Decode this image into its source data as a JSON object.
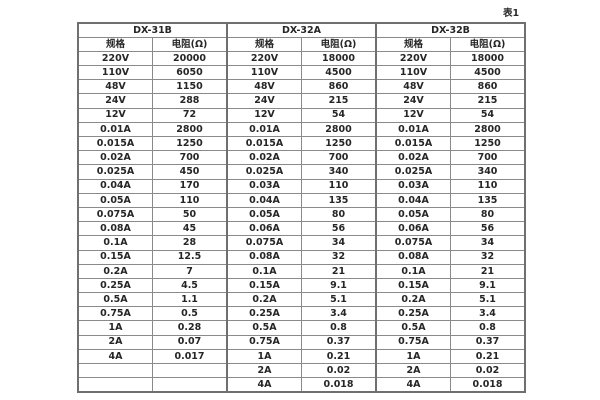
{
  "page": {
    "table_label": "表1"
  },
  "table": {
    "groups": [
      {
        "name": "DX-31B",
        "spec_header": "规格",
        "res_header": "电阻(Ω)",
        "rows": [
          [
            "220V",
            "20000"
          ],
          [
            "110V",
            "6050"
          ],
          [
            "48V",
            "1150"
          ],
          [
            "24V",
            "288"
          ],
          [
            "12V",
            "72"
          ],
          [
            "0.01A",
            "2800"
          ],
          [
            "0.015A",
            "1250"
          ],
          [
            "0.02A",
            "700"
          ],
          [
            "0.025A",
            "450"
          ],
          [
            "0.04A",
            "170"
          ],
          [
            "0.05A",
            "110"
          ],
          [
            "0.075A",
            "50"
          ],
          [
            "0.08A",
            "45"
          ],
          [
            "0.1A",
            "28"
          ],
          [
            "0.15A",
            "12.5"
          ],
          [
            "0.2A",
            "7"
          ],
          [
            "0.25A",
            "4.5"
          ],
          [
            "0.5A",
            "1.1"
          ],
          [
            "0.75A",
            "0.5"
          ],
          [
            "1A",
            "0.28"
          ],
          [
            "2A",
            "0.07"
          ],
          [
            "4A",
            "0.017"
          ],
          [
            "",
            ""
          ],
          [
            "",
            ""
          ]
        ]
      },
      {
        "name": "DX-32A",
        "spec_header": "规格",
        "res_header": "电阻(Ω)",
        "rows": [
          [
            "220V",
            "18000"
          ],
          [
            "110V",
            "4500"
          ],
          [
            "48V",
            "860"
          ],
          [
            "24V",
            "215"
          ],
          [
            "12V",
            "54"
          ],
          [
            "0.01A",
            "2800"
          ],
          [
            "0.015A",
            "1250"
          ],
          [
            "0.02A",
            "700"
          ],
          [
            "0.025A",
            "340"
          ],
          [
            "0.03A",
            "110"
          ],
          [
            "0.04A",
            "135"
          ],
          [
            "0.05A",
            "80"
          ],
          [
            "0.06A",
            "56"
          ],
          [
            "0.075A",
            "34"
          ],
          [
            "0.08A",
            "32"
          ],
          [
            "0.1A",
            "21"
          ],
          [
            "0.15A",
            "9.1"
          ],
          [
            "0.2A",
            "5.1"
          ],
          [
            "0.25A",
            "3.4"
          ],
          [
            "0.5A",
            "0.8"
          ],
          [
            "0.75A",
            "0.37"
          ],
          [
            "1A",
            "0.21"
          ],
          [
            "2A",
            "0.02"
          ],
          [
            "4A",
            "0.018"
          ]
        ]
      },
      {
        "name": "DX-32B",
        "spec_header": "规格",
        "res_header": "电阻(Ω)",
        "rows": [
          [
            "220V",
            "18000"
          ],
          [
            "110V",
            "4500"
          ],
          [
            "48V",
            "860"
          ],
          [
            "24V",
            "215"
          ],
          [
            "12V",
            "54"
          ],
          [
            "0.01A",
            "2800"
          ],
          [
            "0.015A",
            "1250"
          ],
          [
            "0.02A",
            "700"
          ],
          [
            "0.025A",
            "340"
          ],
          [
            "0.03A",
            "110"
          ],
          [
            "0.04A",
            "135"
          ],
          [
            "0.05A",
            "80"
          ],
          [
            "0.06A",
            "56"
          ],
          [
            "0.075A",
            "34"
          ],
          [
            "0.08A",
            "32"
          ],
          [
            "0.1A",
            "21"
          ],
          [
            "0.15A",
            "9.1"
          ],
          [
            "0.2A",
            "5.1"
          ],
          [
            "0.25A",
            "3.4"
          ],
          [
            "0.5A",
            "0.8"
          ],
          [
            "0.75A",
            "0.37"
          ],
          [
            "1A",
            "0.21"
          ],
          [
            "2A",
            "0.02"
          ],
          [
            "4A",
            "0.018"
          ]
        ]
      }
    ]
  },
  "chart_data": {
    "type": "table",
    "title": "表1",
    "column_groups": [
      "DX-31B",
      "DX-32A",
      "DX-32B"
    ],
    "columns_per_group": [
      "规格",
      "电阻(Ω)"
    ]
  }
}
